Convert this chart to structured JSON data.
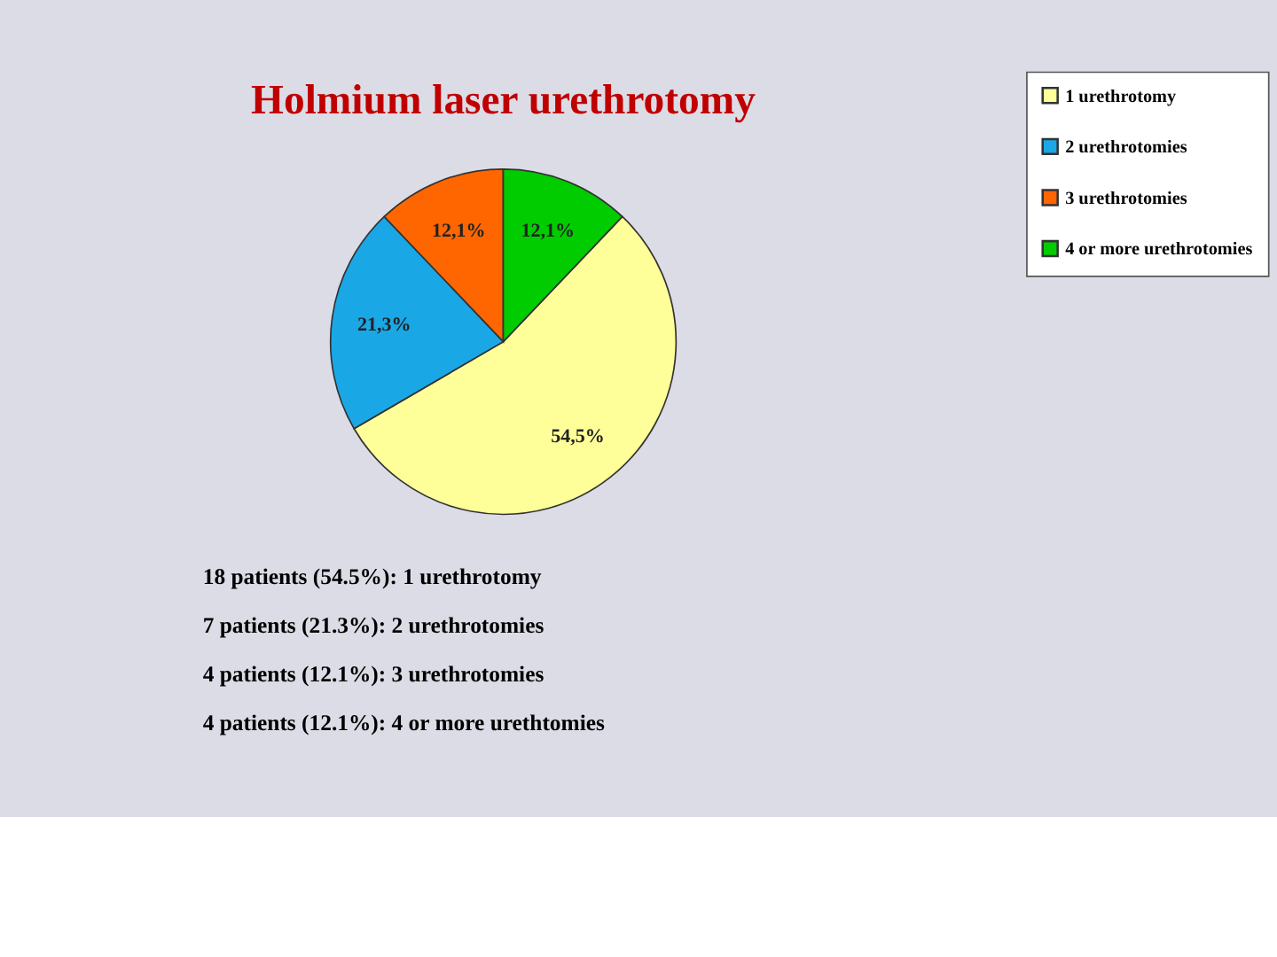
{
  "chart_data": {
    "type": "pie",
    "title": "Holmium laser urethrotomy",
    "categories": [
      "1 urethrotomy",
      "2 urethrotomies",
      "3 urethrotomies",
      "4 or more urethrotomies"
    ],
    "values": [
      54.5,
      21.3,
      12.1,
      12.1
    ],
    "colors": [
      "#ffff99",
      "#1aa7e6",
      "#ff6600",
      "#00cc00"
    ],
    "value_labels": [
      "54,5%",
      "21,3%",
      "12,1%",
      "12,1%"
    ],
    "legend": "right",
    "annotations": [
      "18 patients (54.5%): 1 urethrotomy",
      "7 patients (21.3%): 2 urethrotomies",
      "4 patients (12.1%): 3 urethrotomies",
      "4 patients (12.1%): 4 or more urethtomies"
    ]
  }
}
